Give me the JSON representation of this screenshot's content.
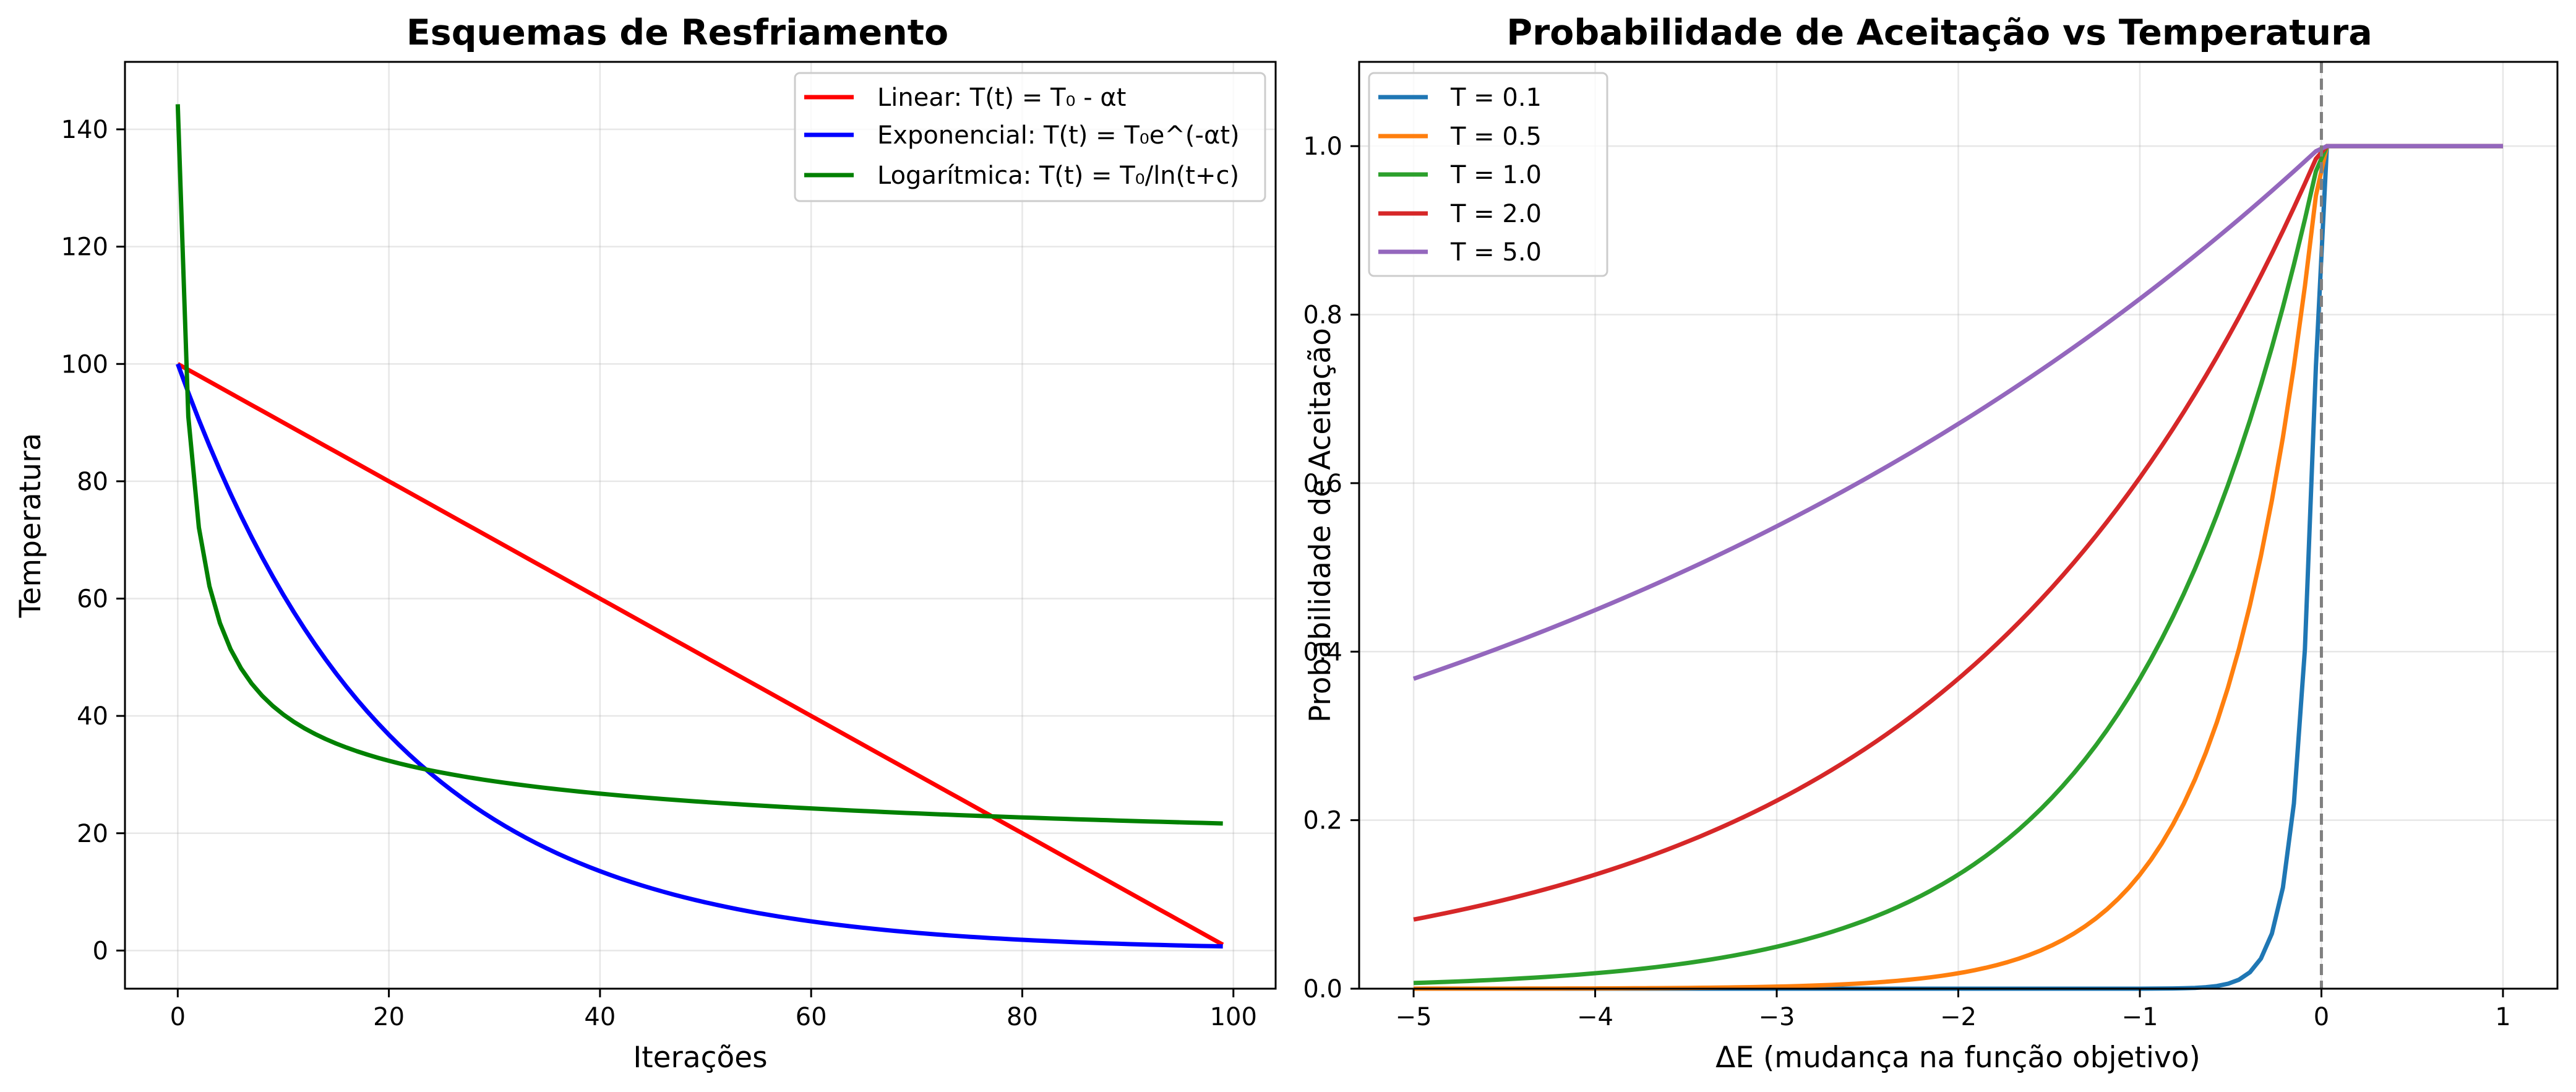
{
  "chart_data": [
    {
      "type": "line",
      "title": "Esquemas de Resfriamento",
      "xlabel": "Iterações",
      "ylabel": "Temperatura",
      "xlim": [
        -5,
        104
      ],
      "ylim": [
        -6.5,
        151.5
      ],
      "xticks": [
        0,
        20,
        40,
        60,
        80,
        100
      ],
      "yticks": [
        0,
        20,
        40,
        60,
        80,
        100,
        120,
        140
      ],
      "grid": true,
      "legend_position": "upper right",
      "series": [
        {
          "name": "Linear: T(t) = T₀ - αt",
          "color": "#ff0000",
          "formula": "linear",
          "params": {
            "T0": 100,
            "alpha": 1
          },
          "x_range": [
            0,
            99
          ],
          "n": 100
        },
        {
          "name": "Exponencial: T(t) = T₀e^(-αt)",
          "color": "#0000ff",
          "formula": "exponential",
          "params": {
            "T0": 100,
            "alpha": 0.05
          },
          "x_range": [
            0,
            99
          ],
          "n": 100
        },
        {
          "name": "Logarítmica: T(t) = T₀/ln(t+c)",
          "color": "#008000",
          "formula": "logarithmic",
          "params": {
            "T0": 100,
            "c": 2
          },
          "x_range": [
            0,
            99
          ],
          "n": 100
        }
      ]
    },
    {
      "type": "line",
      "title": "Probabilidade de Aceitação vs Temperatura",
      "xlabel": "ΔE (mudança na função objetivo)",
      "ylabel": "Probabilidade de Aceitação",
      "xlim": [
        -5.3,
        1.3
      ],
      "ylim": [
        0,
        1.1
      ],
      "xticks": [
        -5,
        -4,
        -3,
        -2,
        -1,
        0,
        1
      ],
      "yticks": [
        0.0,
        0.2,
        0.4,
        0.6,
        0.8,
        1.0
      ],
      "tick_labels_y": [
        "0.0",
        "0.2",
        "0.4",
        "0.6",
        "0.8",
        "1.0"
      ],
      "grid": true,
      "legend_position": "upper left",
      "vline": {
        "x": 0,
        "color": "#808080",
        "style": "dashed"
      },
      "series": [
        {
          "name": "T = 0.1",
          "T": 0.1,
          "color": "#1f77b4",
          "formula": "min(1, exp(dE/T))",
          "x_range": [
            -5,
            1
          ],
          "n": 100
        },
        {
          "name": "T = 0.5",
          "T": 0.5,
          "color": "#ff7f0e",
          "formula": "min(1, exp(dE/T))",
          "x_range": [
            -5,
            1
          ],
          "n": 100
        },
        {
          "name": "T = 1.0",
          "T": 1.0,
          "color": "#2ca02c",
          "formula": "min(1, exp(dE/T))",
          "x_range": [
            -5,
            1
          ],
          "n": 100
        },
        {
          "name": "T = 2.0",
          "T": 2.0,
          "color": "#d62728",
          "formula": "min(1, exp(dE/T))",
          "x_range": [
            -5,
            1
          ],
          "n": 100
        },
        {
          "name": "T = 5.0",
          "T": 5.0,
          "color": "#9467bd",
          "formula": "min(1, exp(dE/T))",
          "x_range": [
            -5,
            1
          ],
          "n": 100
        }
      ]
    }
  ]
}
